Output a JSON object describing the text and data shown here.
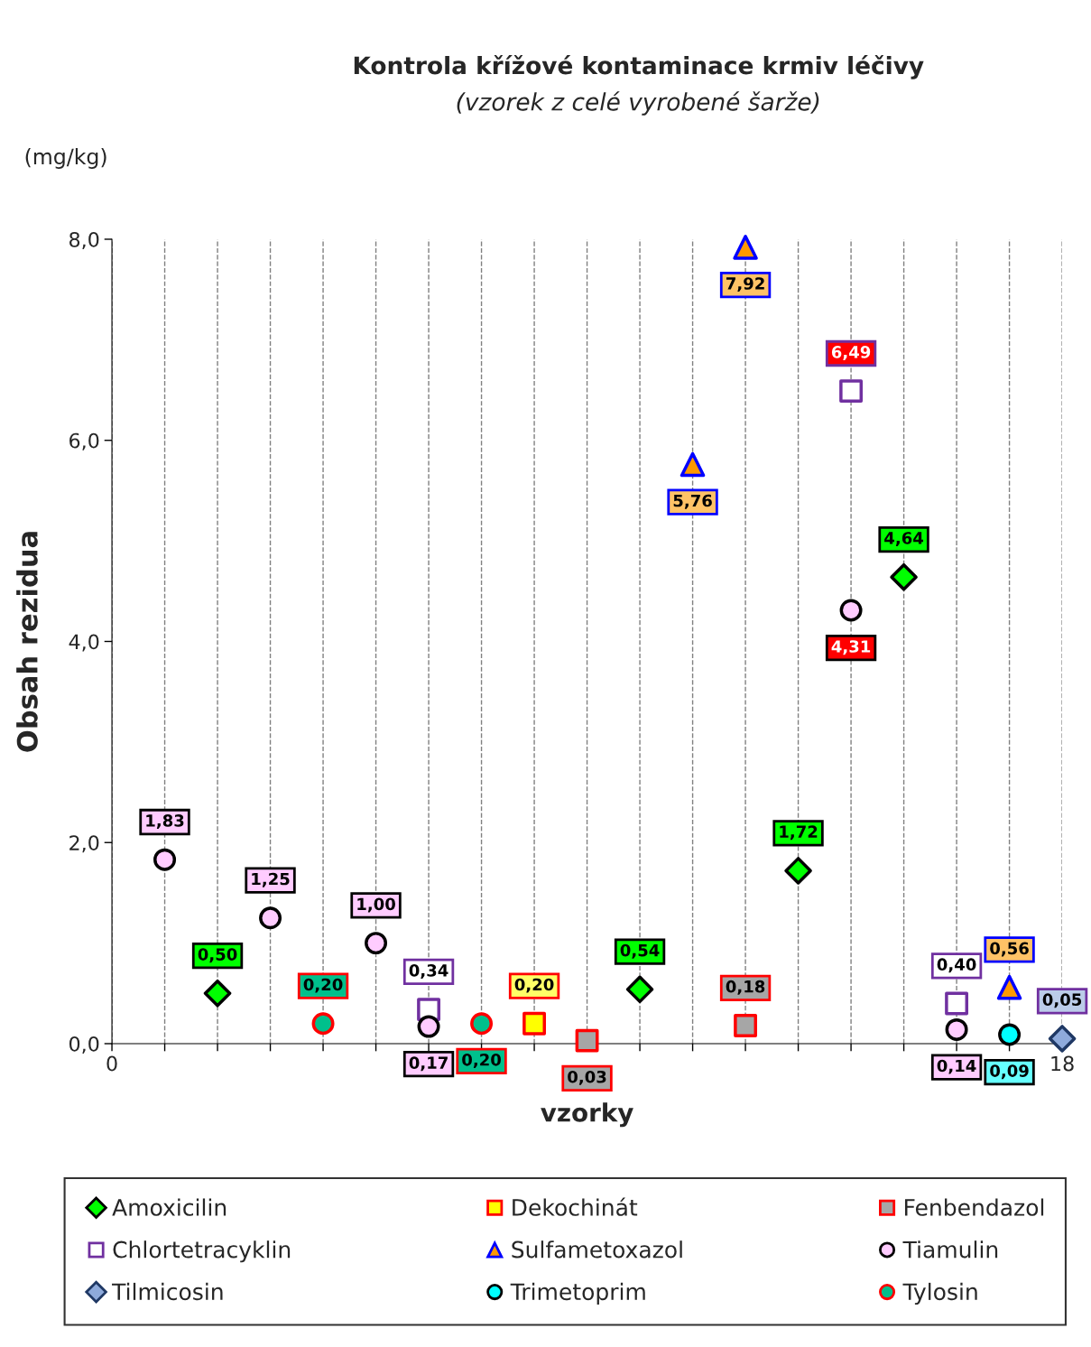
{
  "chart_data": {
    "type": "scatter",
    "title": "Kontrola křížové kontaminace krmiv léčivy",
    "subtitle": "(vzorek z celé vyrobené šarže)",
    "xlabel": "vzorky",
    "ylabel": "Obsah rezidua",
    "annotations": [
      "(mg/kg)"
    ],
    "xlim": [
      0,
      18
    ],
    "xticks": [
      0,
      {
        "value": 1,
        "label": null
      },
      {
        "value": 2,
        "label": null
      },
      {
        "value": 3,
        "label": null
      },
      {
        "value": 4,
        "label": null
      },
      {
        "value": 5,
        "label": null
      },
      {
        "value": 6,
        "label": null
      },
      {
        "value": 7,
        "label": null
      },
      {
        "value": 8,
        "label": null
      },
      {
        "value": 9,
        "label": null
      },
      {
        "value": 10,
        "label": null
      },
      {
        "value": 11,
        "label": null
      },
      {
        "value": 12,
        "label": null
      },
      {
        "value": 13,
        "label": null
      },
      {
        "value": 14,
        "label": null
      },
      {
        "value": 15,
        "label": null
      },
      {
        "value": 16,
        "label": null
      },
      {
        "value": 17,
        "label": null
      },
      18
    ],
    "ylim": [
      0,
      8
    ],
    "yticks": [
      {
        "value": 0,
        "label": "0,0"
      },
      {
        "value": 2,
        "label": "2,0"
      },
      {
        "value": 4,
        "label": "4,0"
      },
      {
        "value": 6,
        "label": "6,0"
      },
      {
        "value": 8,
        "label": "8,0"
      }
    ],
    "grid": "x",
    "legend": "bottom",
    "series": [
      {
        "name": "Amoxicilin",
        "color": "#00ff00",
        "marker": "diamond",
        "x": [
          2,
          10,
          13,
          15
        ],
        "values": [
          0.5,
          0.54,
          1.72,
          4.64
        ],
        "value_labels": [
          "0,50",
          "0,54",
          "1,72",
          "4,64"
        ]
      },
      {
        "name": "Dekochinát",
        "color": "#ffff00",
        "marker": "square",
        "x": [
          8
        ],
        "values": [
          0.2
        ],
        "value_labels": [
          "0,20"
        ]
      },
      {
        "name": "Fenbendazol",
        "color": "#a6a6a6",
        "marker": "square",
        "x": [
          9,
          12
        ],
        "values": [
          0.03,
          0.18
        ],
        "value_labels": [
          "0,03",
          "0,18"
        ]
      },
      {
        "name": "Chlortetracyklin",
        "color": "#ffffff",
        "marker": "square",
        "x": [
          6,
          14,
          16
        ],
        "values": [
          0.34,
          6.49,
          0.4
        ],
        "value_labels": [
          "0,34",
          "6,49",
          "0,40"
        ]
      },
      {
        "name": "Sulfametoxazol",
        "color": "#ff9900",
        "marker": "triangle",
        "x": [
          11,
          12,
          17
        ],
        "values": [
          5.76,
          7.92,
          0.56
        ],
        "value_labels": [
          "5,76",
          "7,92",
          "0,56"
        ]
      },
      {
        "name": "Tiamulin",
        "color": "#ffccff",
        "marker": "circle",
        "x": [
          1,
          3,
          5,
          6,
          14,
          16
        ],
        "values": [
          1.83,
          1.25,
          1.0,
          0.17,
          4.31,
          0.14
        ],
        "value_labels": [
          "1,83",
          "1,25",
          "1,00",
          "0,17",
          "4,31",
          "0,14"
        ]
      },
      {
        "name": "Tilmicosin",
        "color": "#8eaadb",
        "marker": "diamond",
        "x": [
          18
        ],
        "values": [
          0.05
        ],
        "value_labels": [
          "0,05"
        ]
      },
      {
        "name": "Trimetoprim",
        "color": "#00ffff",
        "marker": "circle",
        "x": [
          17
        ],
        "values": [
          0.09
        ],
        "value_labels": [
          "0,09"
        ]
      },
      {
        "name": "Tylosin",
        "color": "#00c08c",
        "marker": "circle",
        "x": [
          4,
          7
        ],
        "values": [
          0.2,
          0.2
        ],
        "value_labels": [
          "0,20",
          "0,20"
        ]
      }
    ]
  }
}
